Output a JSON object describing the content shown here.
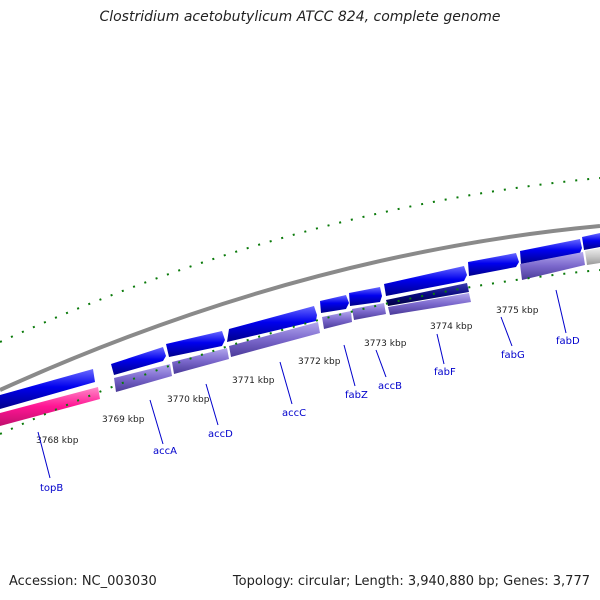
{
  "title": "Clostridium acetobutylicum ATCC 824, complete genome",
  "footer": {
    "accession": "Accession: NC_003030",
    "topology": "Topology: circular; Length: 3,940,880 bp; Genes: 3,777"
  },
  "kbp_labels": [
    "3768 kbp",
    "3769 kbp",
    "3770 kbp",
    "3771 kbp",
    "3772 kbp",
    "3773 kbp",
    "3774 kbp",
    "3775 kbp"
  ],
  "genes": [
    "topB",
    "accA",
    "accD",
    "accC",
    "fabZ",
    "accB",
    "fabF",
    "fabG",
    "fabD"
  ],
  "colors": {
    "forward_cds": "#0000ee",
    "reverse_cds": "#7b68cc",
    "highlight": "#ff1493",
    "dark_feature": "#0a0a80",
    "grey_feature": "#c8c8c8",
    "backbone": "#8a8a8a",
    "ticks": "#0a7a0a"
  }
}
